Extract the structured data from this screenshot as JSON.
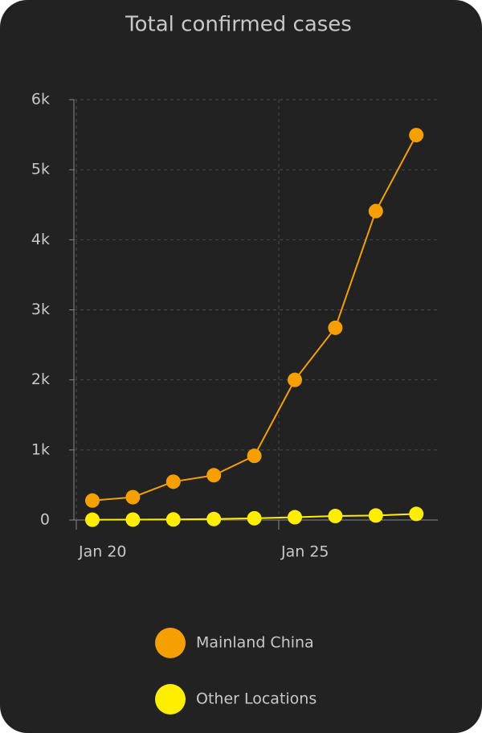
{
  "chart_data": {
    "type": "line",
    "title": "Total confirmed cases",
    "x": [
      "Jan 20",
      "Jan 21",
      "Jan 22",
      "Jan 23",
      "Jan 24",
      "Jan 25",
      "Jan 26",
      "Jan 27",
      "Jan 28"
    ],
    "xticks": [
      "Jan 20",
      "Jan 25"
    ],
    "series": [
      {
        "name": "Mainland China",
        "color": "#f5a000",
        "values": [
          278,
          326,
          547,
          639,
          916,
          2000,
          2744,
          4409,
          5494
        ]
      },
      {
        "name": "Other Locations",
        "color": "#ffee00",
        "values": [
          4,
          6,
          8,
          14,
          25,
          40,
          57,
          64,
          87
        ]
      }
    ],
    "ylim": [
      0,
      6000
    ],
    "yticks": [
      0,
      {
        "value": 1000,
        "label": "1k"
      },
      {
        "value": 2000,
        "label": "2k"
      },
      {
        "value": 3000,
        "label": "3k"
      },
      {
        "value": 4000,
        "label": "4k"
      },
      {
        "value": 5000,
        "label": "5k"
      },
      {
        "value": 6000,
        "label": "6k"
      }
    ],
    "grid": true
  }
}
